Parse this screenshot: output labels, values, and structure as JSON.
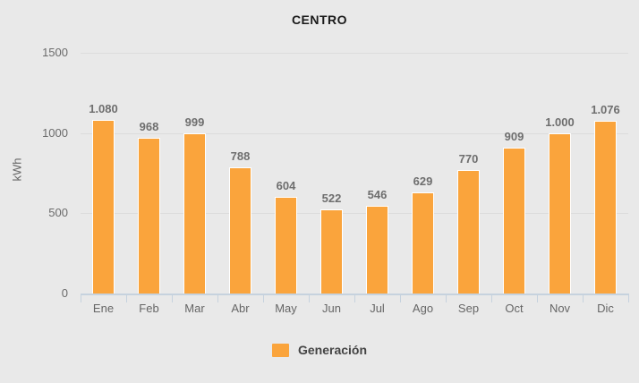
{
  "chart_data": {
    "type": "bar",
    "title": "CENTRO",
    "xlabel": "",
    "ylabel": "kWh",
    "categories": [
      "Ene",
      "Feb",
      "Mar",
      "Abr",
      "May",
      "Jun",
      "Jul",
      "Ago",
      "Sep",
      "Oct",
      "Nov",
      "Dic"
    ],
    "series": [
      {
        "name": "Generación",
        "values": [
          1080,
          968,
          999,
          788,
          604,
          522,
          546,
          629,
          770,
          909,
          1000,
          1076
        ],
        "value_labels": [
          "1.080",
          "968",
          "999",
          "788",
          "604",
          "522",
          "546",
          "629",
          "770",
          "909",
          "1.000",
          "1.076"
        ]
      }
    ],
    "ylim": [
      0,
      1500
    ],
    "yticks": [
      0,
      500,
      1000,
      1500
    ],
    "grid": true,
    "legend_position": "bottom",
    "colors": {
      "bar": "#FAA43C",
      "bar_border": "#FFFFFF",
      "background": "#E9E9E9",
      "gridline": "#DCDCDC",
      "axis": "#C6D2DE",
      "tick_text": "#6B6B6B",
      "value_text": "#6E6E6E",
      "title_text": "#1A1A1A"
    }
  },
  "legend": {
    "items": [
      {
        "label": "Generación",
        "color": "#FAA43C"
      }
    ]
  }
}
